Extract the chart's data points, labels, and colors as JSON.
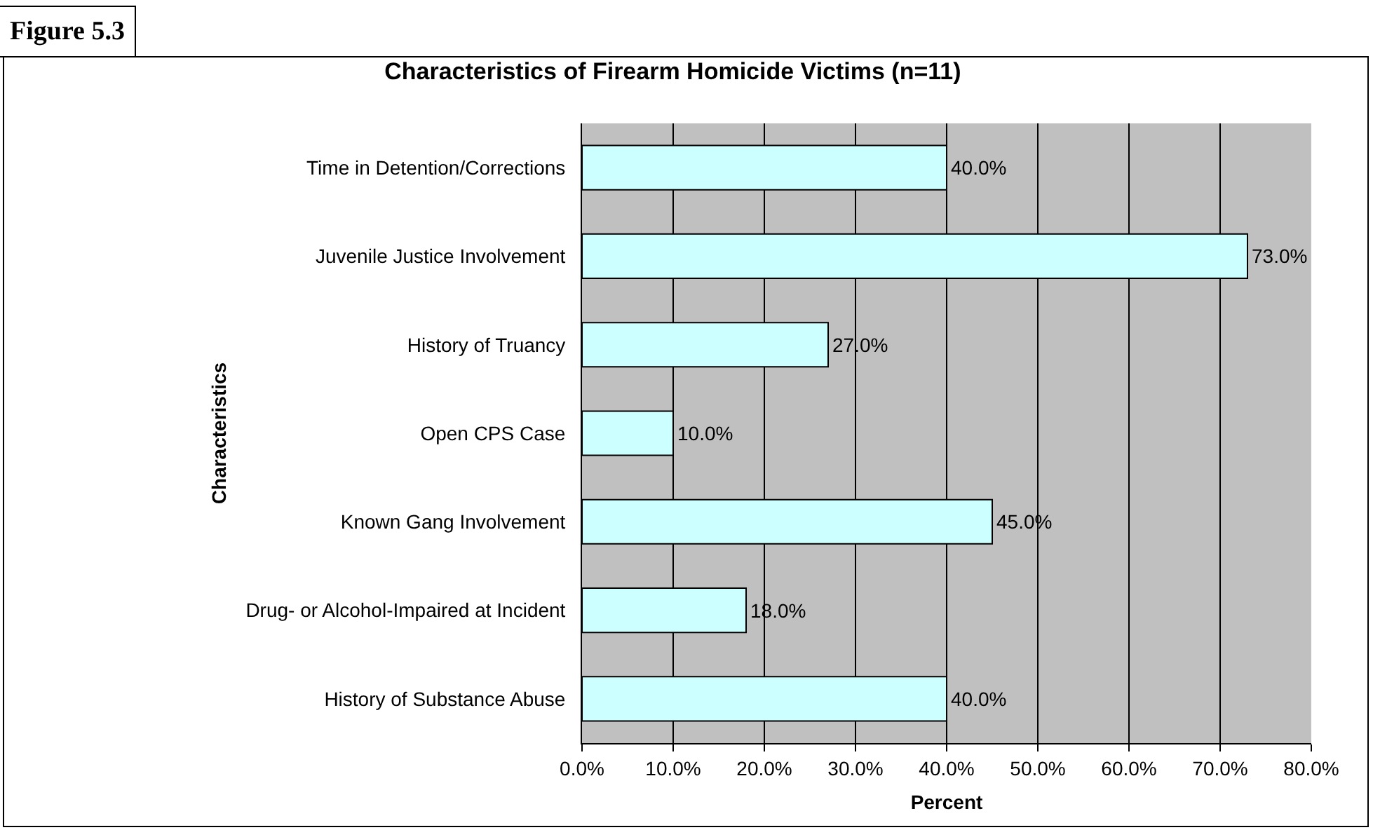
{
  "chart_data": {
    "type": "bar",
    "orientation": "horizontal",
    "title": "Characteristics of Firearm Homicide Victims (n=11)",
    "xlabel": "Percent",
    "ylabel": "Characteristics",
    "annotations": [
      "Figure 5.3"
    ],
    "categories": [
      "Time in Detention/Corrections",
      "Juvenile Justice Involvement",
      "History of Truancy",
      "Open CPS Case",
      "Known Gang Involvement",
      "Drug- or Alcohol-Impaired at Incident",
      "History of Substance Abuse"
    ],
    "values": [
      40,
      73,
      27,
      10,
      45,
      18,
      40
    ],
    "value_labels": [
      "40.0%",
      "73.0%",
      "27.0%",
      "10.0%",
      "45.0%",
      "18.0%",
      "40.0%"
    ],
    "color": "#ccffff",
    "xlim": [
      0,
      80
    ],
    "xticks": [
      {
        "value": 0,
        "label": "0.0%"
      },
      {
        "value": 10,
        "label": "10.0%"
      },
      {
        "value": 20,
        "label": "20.0%"
      },
      {
        "value": 30,
        "label": "30.0%"
      },
      {
        "value": 40,
        "label": "40.0%"
      },
      {
        "value": 50,
        "label": "50.0%"
      },
      {
        "value": 60,
        "label": "60.0%"
      },
      {
        "value": 70,
        "label": "70.0%"
      },
      {
        "value": 80,
        "label": "80.0%"
      }
    ],
    "grid": "x",
    "legend": false
  }
}
